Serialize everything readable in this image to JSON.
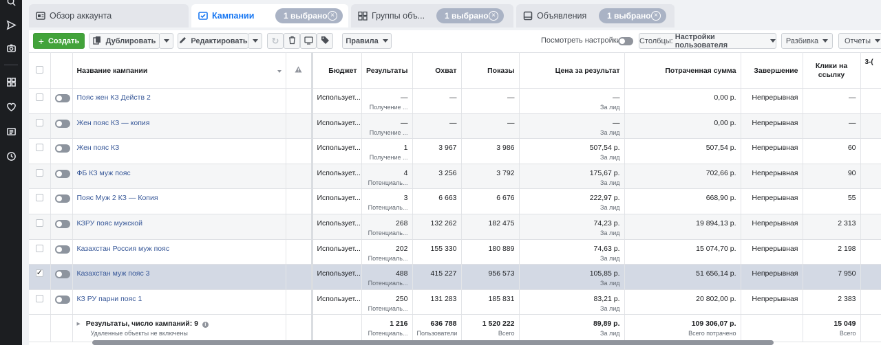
{
  "tabs": [
    {
      "label": "Обзор аккаунта",
      "icon": "account-overview-icon"
    },
    {
      "label": "Кампании",
      "icon": "campaigns-icon",
      "pill": "1 выбрано"
    },
    {
      "label": "Группы объ...",
      "icon": "ad-sets-icon",
      "pill": "1 выбрано"
    },
    {
      "label": "Объявления",
      "icon": "ads-icon",
      "pill": "1 выбрано"
    }
  ],
  "toolbar": {
    "create": "Создать",
    "duplicate": "Дублировать",
    "edit": "Редактировать",
    "rules": "Правила",
    "view_settings": "Посмотреть настройки",
    "columns_label": "Столбцы:",
    "columns_value": "Настройки пользователя",
    "breakdown": "Разбивка",
    "reports": "Отчеты"
  },
  "table": {
    "headers": {
      "name": "Название кампании",
      "budget": "Бюджет",
      "results": "Результаты",
      "reach": "Охват",
      "impressions": "Показы",
      "cost": "Цена за результат",
      "spent": "Потраченная сумма",
      "ends": "Завершение",
      "clicks_1": "Клики на",
      "clicks_2": "ссылку",
      "last": "3-("
    },
    "rows": [
      {
        "name": "Пояс жен КЗ Действ 2",
        "budget": "Использует...",
        "results": "—",
        "results_sub": "Получение ...",
        "reach": "—",
        "impressions": "—",
        "cost": "—",
        "cost_sub": "За лид",
        "spent": "0,00 р.",
        "ends": "Непрерывная",
        "clicks": "—",
        "checked": false
      },
      {
        "name": "Жен пояс КЗ — копия",
        "budget": "Использует...",
        "results": "—",
        "results_sub": "Получение ...",
        "reach": "—",
        "impressions": "—",
        "cost": "—",
        "cost_sub": "За лид",
        "spent": "0,00 р.",
        "ends": "Непрерывная",
        "clicks": "—",
        "checked": false
      },
      {
        "name": "Жен пояс КЗ",
        "budget": "Использует...",
        "results": "1",
        "results_sub": "Получение ...",
        "reach": "3 967",
        "impressions": "3 986",
        "cost": "507,54 р.",
        "cost_sub": "За лид",
        "spent": "507,54 р.",
        "ends": "Непрерывная",
        "clicks": "60",
        "checked": false
      },
      {
        "name": "ФБ КЗ муж пояс",
        "budget": "Использует...",
        "results": "4",
        "results_sub": "Потенциаль...",
        "reach": "3 256",
        "impressions": "3 792",
        "cost": "175,67 р.",
        "cost_sub": "За лид",
        "spent": "702,66 р.",
        "ends": "Непрерывная",
        "clicks": "90",
        "checked": false
      },
      {
        "name": "Пояс Муж 2 КЗ — Копия",
        "budget": "Использует...",
        "results": "3",
        "results_sub": "Потенциаль...",
        "reach": "6 663",
        "impressions": "6 676",
        "cost": "222,97 р.",
        "cost_sub": "За лид",
        "spent": "668,90 р.",
        "ends": "Непрерывная",
        "clicks": "55",
        "checked": false
      },
      {
        "name": "КЗРУ пояс мужской",
        "budget": "Использует...",
        "results": "268",
        "results_sub": "Потенциаль...",
        "reach": "132 262",
        "impressions": "182 475",
        "cost": "74,23 р.",
        "cost_sub": "За лид",
        "spent": "19 894,13 р.",
        "ends": "Непрерывная",
        "clicks": "2 313",
        "checked": false
      },
      {
        "name": "Казахстан Россия муж пояс",
        "budget": "Использует...",
        "results": "202",
        "results_sub": "Потенциаль...",
        "reach": "155 330",
        "impressions": "180 889",
        "cost": "74,63 р.",
        "cost_sub": "За лид",
        "spent": "15 074,70 р.",
        "ends": "Непрерывная",
        "clicks": "2 198",
        "checked": false
      },
      {
        "name": "Казахстан муж пояс 3",
        "budget": "Использует...",
        "results": "488",
        "results_sub": "Потенциаль...",
        "reach": "415 227",
        "impressions": "956 573",
        "cost": "105,85 р.",
        "cost_sub": "За лид",
        "spent": "51 656,14 р.",
        "ends": "Непрерывная",
        "clicks": "7 950",
        "checked": true
      },
      {
        "name": "КЗ РУ парни пояс 1",
        "budget": "Использует...",
        "results": "250",
        "results_sub": "Потенциаль...",
        "reach": "131 283",
        "impressions": "185 831",
        "cost": "83,21 р.",
        "cost_sub": "За лид",
        "spent": "20 802,00 р.",
        "ends": "Непрерывная",
        "clicks": "2 383",
        "checked": false
      }
    ],
    "total": {
      "label": "Результаты, число кампаний: 9",
      "label_sub": "Удаленные объекты не включены",
      "results": "1 216",
      "results_sub": "Потенциаль...",
      "reach": "636 788",
      "reach_sub": "Пользователи",
      "impressions": "1 520 222",
      "impressions_sub": "Всего",
      "cost": "89,89 р.",
      "cost_sub": "За лид",
      "spent": "109 306,07 р.",
      "spent_sub": "Всего потрачено",
      "clicks": "15 049",
      "clicks_sub": "Всего"
    }
  },
  "colors": {
    "accent": "#1877f2",
    "create": "#42a33a",
    "link": "#385898",
    "selected_row": "#d3d9e4"
  }
}
